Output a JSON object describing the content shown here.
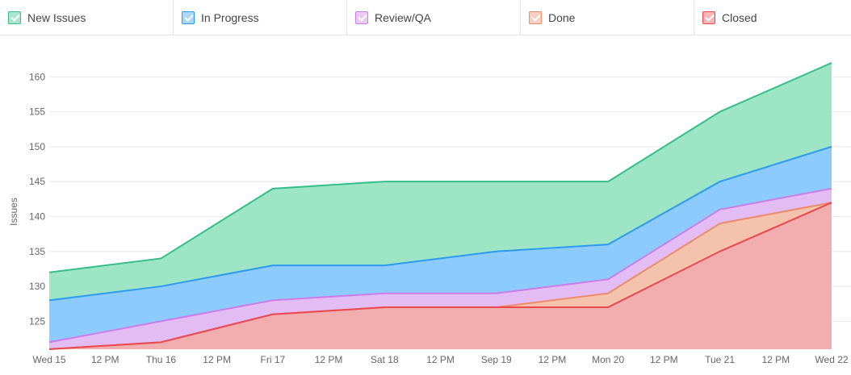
{
  "legend": [
    {
      "label": "New Issues",
      "color": "#34be8a"
    },
    {
      "label": "In Progress",
      "color": "#2c9af0"
    },
    {
      "label": "Review/QA",
      "color": "#cc7ee8"
    },
    {
      "label": "Done",
      "color": "#ec8a6a"
    },
    {
      "label": "Closed",
      "color": "#e8484e"
    }
  ],
  "chart_data": {
    "type": "area",
    "stacked": false,
    "ylabel": "Issues",
    "xlabel": "",
    "ylim": [
      121,
      165
    ],
    "yticks": [
      125,
      130,
      135,
      140,
      145,
      150,
      155,
      160
    ],
    "grid": true,
    "legend_position": "top",
    "categories": [
      "Wed 15",
      "Thu 16",
      "Fri 17",
      "Sat 18",
      "Sep 19",
      "Mon 20",
      "Tue 21",
      "Wed 22"
    ],
    "xtick_labels": [
      "Wed 15",
      "12 PM",
      "Thu 16",
      "12 PM",
      "Fri 17",
      "12 PM",
      "Sat 18",
      "12 PM",
      "Sep 19",
      "12 PM",
      "Mon 20",
      "12 PM",
      "Tue 21",
      "12 PM",
      "Wed 22"
    ],
    "series": [
      {
        "name": "New Issues",
        "color": "#34be8a",
        "fill": "#9ee5c6",
        "values": [
          132,
          134,
          144,
          145,
          145,
          145,
          155,
          162
        ]
      },
      {
        "name": "In Progress",
        "color": "#2c9af0",
        "fill": "#8ccbfb",
        "values": [
          128,
          130,
          133,
          133,
          135,
          136,
          145,
          150
        ]
      },
      {
        "name": "Review/QA",
        "color": "#cc7ee8",
        "fill": "#e3bcf4",
        "values": [
          122,
          125,
          128,
          129,
          129,
          131,
          141,
          144
        ]
      },
      {
        "name": "Done",
        "color": "#ec8a6a",
        "fill": "#f5c3ad",
        "values": [
          121,
          122,
          126,
          127,
          127,
          129,
          139,
          142
        ]
      },
      {
        "name": "Closed",
        "color": "#e8484e",
        "fill": "#f2aeae",
        "values": [
          121,
          122,
          126,
          127,
          127,
          127,
          135,
          142
        ]
      }
    ]
  }
}
